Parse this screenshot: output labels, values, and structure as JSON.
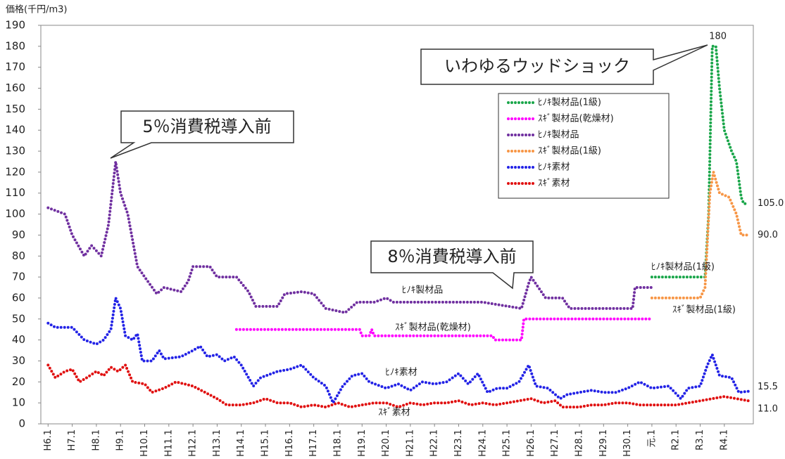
{
  "chart_data": {
    "type": "line",
    "y_label": "価格(千円/m3)",
    "annotations": [
      "5％消費税導入前",
      "8％消費税導入前",
      "いわゆるウッドショック"
    ],
    "xlim": [
      -0.3,
      29.2
    ],
    "ylim": [
      0,
      190
    ],
    "yticks": [
      0,
      10,
      20,
      30,
      40,
      50,
      60,
      70,
      80,
      90,
      100,
      110,
      120,
      130,
      140,
      150,
      160,
      170,
      180,
      190
    ],
    "xticks": [
      {
        "value": 0,
        "label": "H6.1"
      },
      {
        "value": 1,
        "label": "H7.1"
      },
      {
        "value": 2,
        "label": "H8.1"
      },
      {
        "value": 3,
        "label": "H9.1"
      },
      {
        "value": 4,
        "label": "H10.1"
      },
      {
        "value": 5,
        "label": "H11.1"
      },
      {
        "value": 6,
        "label": "H12.1"
      },
      {
        "value": 7,
        "label": "H13.1"
      },
      {
        "value": 8,
        "label": "H14.1"
      },
      {
        "value": 9,
        "label": "H15.1"
      },
      {
        "value": 10,
        "label": "H16.1"
      },
      {
        "value": 11,
        "label": "H17.1"
      },
      {
        "value": 12,
        "label": "H18.1"
      },
      {
        "value": 13,
        "label": "H19.1"
      },
      {
        "value": 14,
        "label": "H20.1"
      },
      {
        "value": 15,
        "label": "H21.1"
      },
      {
        "value": 16,
        "label": "H22.1"
      },
      {
        "value": 17,
        "label": "H23.1"
      },
      {
        "value": 18,
        "label": "H24.1"
      },
      {
        "value": 19,
        "label": "H25.1"
      },
      {
        "value": 20,
        "label": "H26.1"
      },
      {
        "value": 21,
        "label": "H27.1"
      },
      {
        "value": 22,
        "label": "H28.1"
      },
      {
        "value": 23,
        "label": "H29.1"
      },
      {
        "value": 24,
        "label": "H30.1"
      },
      {
        "value": 25,
        "label": "元.1"
      },
      {
        "value": 26,
        "label": "R2.1"
      },
      {
        "value": 27,
        "label": "R3.1"
      },
      {
        "value": 28,
        "label": "R4.1"
      }
    ],
    "grid": false,
    "legend": "upper right",
    "series": [
      {
        "name": "ﾋﾉｷ製材品(1級)",
        "color": "#1aa64a",
        "x": [
          25.0,
          27.2,
          27.35,
          27.5,
          27.65,
          27.8,
          28.0,
          28.3,
          28.5,
          28.7,
          28.8,
          29.0
        ],
        "values": [
          70,
          70,
          100,
          180,
          180,
          160,
          140,
          130,
          125,
          108,
          105,
          105
        ],
        "value_labels": [
          null,
          null,
          null,
          "180",
          null,
          null,
          null,
          null,
          null,
          null,
          null,
          "105.0"
        ]
      },
      {
        "name": "ｽｷﾞ製材品(乾燥材)",
        "color": "#ff00ff",
        "x": [
          7.8,
          12.9,
          13.0,
          13.3,
          13.4,
          13.5,
          18.4,
          18.5,
          19.6,
          19.7,
          25.0
        ],
        "values": [
          45,
          45,
          42,
          42,
          45,
          42,
          42,
          40,
          40,
          50,
          50
        ]
      },
      {
        "name": "ﾋﾉｷ製材品",
        "color": "#7030a0",
        "x": [
          0,
          0.7,
          1,
          1.5,
          1.8,
          2.2,
          2.5,
          2.8,
          3.0,
          3.3,
          3.7,
          4.0,
          4.5,
          4.8,
          5.5,
          5.8,
          6.0,
          6.7,
          7.0,
          7.8,
          8.3,
          8.6,
          9.5,
          9.8,
          10.5,
          11.0,
          11.5,
          12.3,
          12.8,
          13.5,
          14.0,
          14.3,
          16.0,
          18.0,
          19.6,
          19.9,
          20.0,
          20.3,
          20.6,
          21.3,
          21.6,
          24.2,
          24.3,
          25.0
        ],
        "values": [
          103,
          100,
          90,
          80,
          85,
          80,
          95,
          125,
          110,
          100,
          75,
          70,
          62,
          65,
          63,
          68,
          75,
          75,
          70,
          70,
          63,
          56,
          56,
          62,
          63,
          62,
          55,
          53,
          58,
          58,
          60,
          58,
          58,
          58,
          55,
          67,
          70,
          65,
          60,
          60,
          55,
          55,
          65,
          65
        ]
      },
      {
        "name": "ｽｷﾞ製材品(1級)",
        "color": "#f79646",
        "x": [
          25.0,
          27.0,
          27.2,
          27.4,
          27.55,
          27.8,
          28.2,
          28.5,
          28.7,
          29.0
        ],
        "values": [
          60,
          60,
          65,
          110,
          120,
          110,
          108,
          100,
          90,
          90
        ],
        "value_labels": [
          null,
          null,
          null,
          null,
          null,
          null,
          null,
          null,
          null,
          "90.0"
        ]
      },
      {
        "name": "ﾋﾉｷ素材",
        "color": "#2323e6",
        "x": [
          0,
          0.3,
          1,
          1.5,
          2,
          2.3,
          2.6,
          2.8,
          3.0,
          3.2,
          3.5,
          3.7,
          3.9,
          4.3,
          4.6,
          4.8,
          5.5,
          6.0,
          6.3,
          6.6,
          7.0,
          7.3,
          7.7,
          8.0,
          8.3,
          8.5,
          8.8,
          9.5,
          10,
          10.5,
          11.0,
          11.5,
          11.8,
          12.2,
          12.6,
          13.0,
          13.3,
          14,
          14.5,
          15,
          15.5,
          16,
          16.5,
          17,
          17.4,
          17.8,
          18.2,
          18.6,
          19,
          19.5,
          19.9,
          20.2,
          20.7,
          21.2,
          21.5,
          22,
          22.5,
          23,
          23.5,
          24,
          24.5,
          25,
          25.7,
          26.2,
          26.5,
          27,
          27.3,
          27.5,
          27.8,
          28.3,
          28.6,
          29.0
        ],
        "values": [
          48,
          46,
          46,
          40,
          38,
          40,
          45,
          60,
          55,
          42,
          40,
          43,
          30,
          30,
          35,
          31,
          32,
          35,
          37,
          32,
          33,
          30,
          32,
          28,
          22,
          18,
          22,
          25,
          26,
          28,
          22,
          18,
          10,
          18,
          23,
          24,
          20,
          17,
          19,
          16,
          20,
          19,
          20,
          24,
          19,
          24,
          15,
          17,
          17,
          20,
          28,
          18,
          17,
          12,
          14,
          15,
          16,
          15,
          15,
          17,
          20,
          17,
          18,
          12,
          17,
          18,
          28,
          33,
          23,
          22,
          15,
          15.5
        ],
        "value_labels": [
          null,
          null,
          null,
          null,
          null,
          null,
          null,
          null,
          null,
          null,
          null,
          null,
          null,
          null,
          null,
          null,
          null,
          null,
          null,
          null,
          null,
          null,
          null,
          null,
          null,
          null,
          null,
          null,
          null,
          null,
          null,
          null,
          null,
          null,
          null,
          null,
          null,
          null,
          null,
          null,
          null,
          null,
          null,
          null,
          null,
          null,
          null,
          null,
          null,
          null,
          null,
          null,
          null,
          null,
          null,
          null,
          null,
          null,
          null,
          null,
          null,
          null,
          null,
          null,
          null,
          null,
          null,
          null,
          null,
          null,
          null,
          "15.5"
        ]
      },
      {
        "name": "ｽｷﾞ素材",
        "color": "#e01010",
        "x": [
          0,
          0.3,
          0.7,
          1,
          1.3,
          1.6,
          2,
          2.3,
          2.6,
          2.9,
          3.2,
          3.5,
          4.0,
          4.3,
          4.8,
          5.3,
          6.0,
          6.5,
          7.0,
          7.4,
          8.0,
          8.5,
          9.0,
          9.5,
          10,
          10.5,
          11,
          11.5,
          12,
          12.5,
          13,
          13.5,
          14,
          14.5,
          15,
          15.5,
          16,
          16.5,
          17,
          17.5,
          18,
          18.5,
          19,
          19.5,
          20,
          20.5,
          21,
          21.3,
          22,
          22.5,
          23,
          23.5,
          24,
          24.5,
          25,
          26,
          26.5,
          27,
          27.5,
          28,
          28.5,
          29
        ],
        "values": [
          28,
          22,
          25,
          26,
          20,
          22,
          25,
          23,
          27,
          25,
          28,
          20,
          19,
          15,
          17,
          20,
          18,
          15,
          12,
          9,
          9,
          10,
          12,
          10,
          10,
          8,
          9,
          8,
          10,
          8,
          9,
          10,
          10,
          8,
          10,
          9,
          10,
          10,
          11,
          9,
          10,
          9,
          10,
          11,
          12,
          10,
          11,
          8,
          8,
          9,
          9,
          10,
          10,
          9,
          9,
          9,
          10,
          11,
          12,
          13,
          12,
          11
        ],
        "value_labels": [
          null,
          null,
          null,
          null,
          null,
          null,
          null,
          null,
          null,
          null,
          null,
          null,
          null,
          null,
          null,
          null,
          null,
          null,
          null,
          null,
          null,
          null,
          null,
          null,
          null,
          null,
          null,
          null,
          null,
          null,
          null,
          null,
          null,
          null,
          null,
          null,
          null,
          null,
          null,
          null,
          null,
          null,
          null,
          null,
          null,
          null,
          null,
          null,
          null,
          null,
          null,
          null,
          null,
          null,
          null,
          null,
          null,
          null,
          null,
          null,
          null,
          "11.0"
        ]
      }
    ]
  }
}
